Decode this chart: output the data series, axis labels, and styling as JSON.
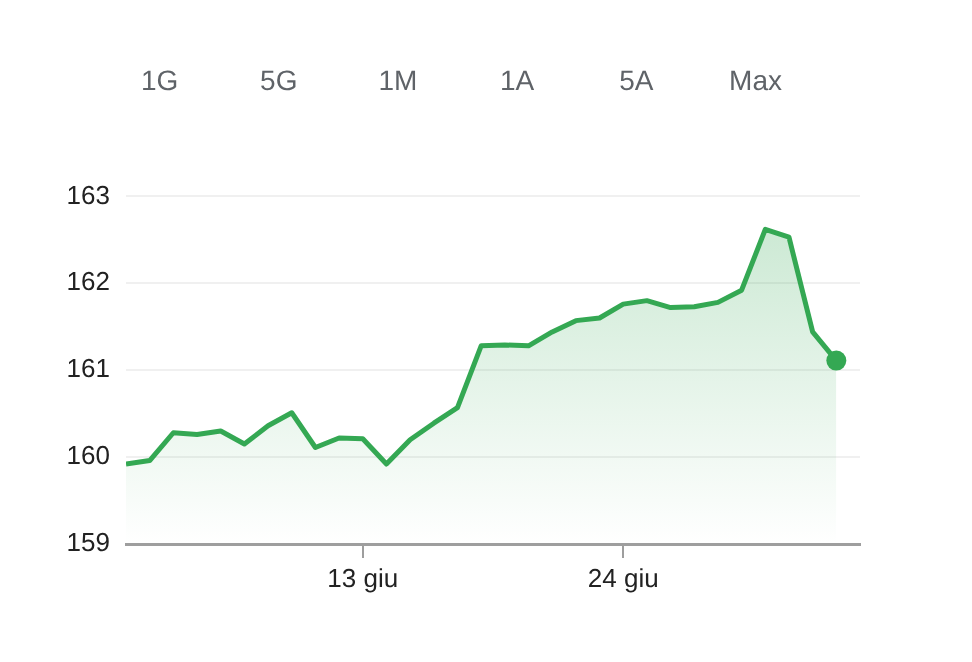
{
  "chart_data": {
    "type": "area",
    "annotations": [
      "1G",
      "5G",
      "1M",
      "1A",
      "5A",
      "Max"
    ],
    "x": [
      "--06-03",
      "--06-04",
      "--06-05",
      "--06-06",
      "--06-07",
      "--06-08",
      "--06-09",
      "--06-10",
      "--06-11",
      "--06-12",
      "--06-13",
      "--06-14",
      "--06-15",
      "--06-16",
      "--06-17",
      "--06-18",
      "--06-19",
      "--06-20",
      "--06-21",
      "--06-22",
      "--06-23",
      "--06-24",
      "--06-25",
      "--06-26",
      "--06-27",
      "--06-28",
      "--06-29",
      "--06-30",
      "--07-01",
      "--07-02",
      "--07-03"
    ],
    "series": [
      {
        "color": "#34a853",
        "values": [
          159.92,
          159.96,
          160.28,
          160.26,
          160.3,
          160.15,
          160.36,
          160.51,
          160.11,
          160.22,
          160.21,
          159.92,
          160.2,
          160.39,
          160.57,
          161.28,
          161.29,
          161.28,
          161.44,
          161.57,
          161.6,
          161.76,
          161.8,
          161.72,
          161.73,
          161.78,
          161.92,
          162.62,
          162.53,
          161.44,
          161.11
        ]
      }
    ],
    "xlim": [
      "--06-03",
      "--07-04"
    ],
    "xticks": [
      {
        "value": "--06-13",
        "label": "13 giu"
      },
      {
        "value": "--06-24",
        "label": "24 giu"
      }
    ],
    "ylim": [
      159,
      163.05
    ],
    "yticks": [
      159,
      160,
      161,
      162,
      163
    ],
    "grid": "y",
    "legend": false
  }
}
